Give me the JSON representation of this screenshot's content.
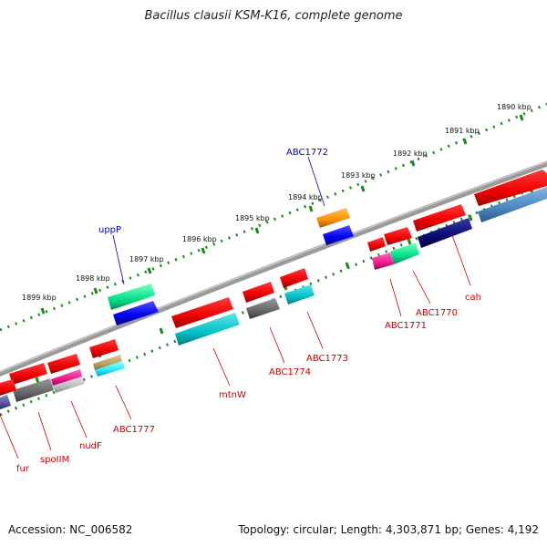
{
  "title": "Bacillus clausii KSM-K16, complete genome",
  "footer": {
    "accession": "Accession: NC_006582",
    "summary": "Topology: circular; Length: 4,303,871 bp; Genes: 4,192"
  },
  "colors": {
    "backbone": "#8a8a8a",
    "tick": "#1a8a1a",
    "label_top": "#0000cc",
    "label_bottom": "#cc0000"
  },
  "kbp_labels": [
    "1890 kbp",
    "1891 kbp",
    "1892 kbp",
    "1893 kbp",
    "1894 kbp",
    "1895 kbp",
    "1896 kbp",
    "1897 kbp",
    "1898 kbp",
    "1899 kbp"
  ],
  "gene_labels": {
    "ABC1772": "ABC1772",
    "uppP": "uppP",
    "cah": "cah",
    "ABC1770": "ABC1770",
    "ABC1771": "ABC1771",
    "ABC1773": "ABC1773",
    "ABC1774": "ABC1774",
    "mtnW": "mtnW",
    "ABC1777": "ABC1777",
    "nudF": "nudF",
    "spoIIM": "spoIIM",
    "fur": "fur"
  }
}
